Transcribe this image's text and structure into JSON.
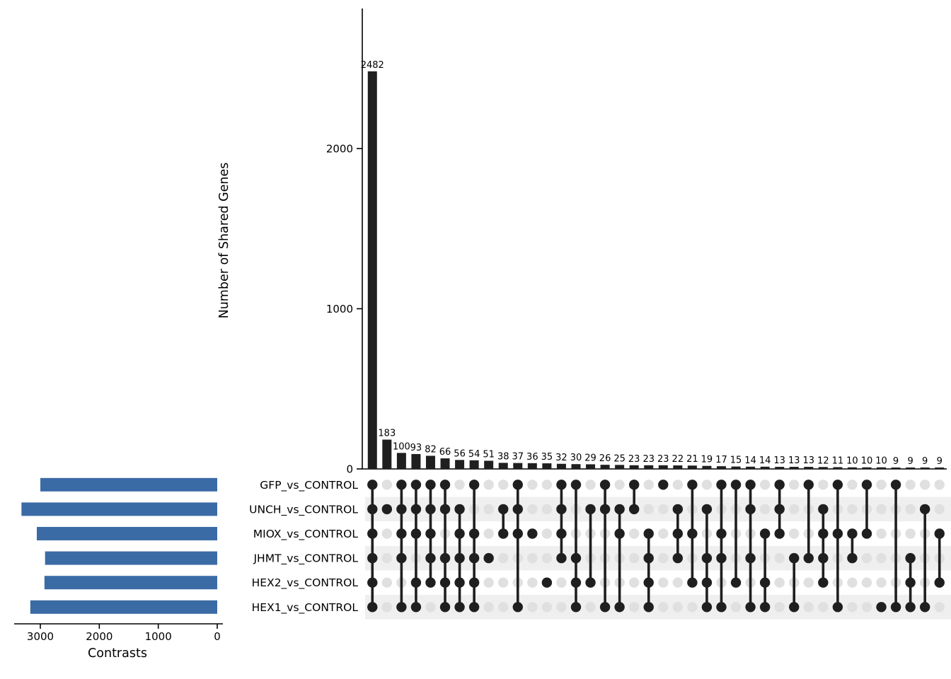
{
  "chart_data": {
    "type": "upset",
    "title": "",
    "intersection_axis": {
      "label": "Number of Shared Genes",
      "ticks": [
        0,
        1000,
        2000
      ],
      "max": 2600
    },
    "set_axis": {
      "label": "Contrasts",
      "ticks": [
        3000,
        2000,
        1000,
        0
      ],
      "max": 3440
    },
    "sets": [
      {
        "name": "GFP_vs_CONTROL",
        "size": 3000
      },
      {
        "name": "UNCH_vs_CONTROL",
        "size": 3320
      },
      {
        "name": "MIOX_vs_CONTROL",
        "size": 3060
      },
      {
        "name": "JHMT_vs_CONTROL",
        "size": 2920
      },
      {
        "name": "HEX2_vs_CONTROL",
        "size": 2930
      },
      {
        "name": "HEX1_vs_CONTROL",
        "size": 3170
      }
    ],
    "intersections": [
      {
        "value": 2482,
        "member": [
          1,
          1,
          1,
          1,
          1,
          1
        ]
      },
      {
        "value": 183,
        "member": [
          0,
          1,
          0,
          0,
          0,
          0
        ]
      },
      {
        "value": 100,
        "member": [
          1,
          1,
          1,
          1,
          0,
          1
        ]
      },
      {
        "value": 93,
        "member": [
          1,
          1,
          1,
          0,
          1,
          1
        ]
      },
      {
        "value": 82,
        "member": [
          1,
          1,
          1,
          1,
          1,
          0
        ]
      },
      {
        "value": 66,
        "member": [
          1,
          1,
          0,
          1,
          1,
          1
        ]
      },
      {
        "value": 56,
        "member": [
          0,
          1,
          1,
          1,
          1,
          1
        ]
      },
      {
        "value": 54,
        "member": [
          1,
          0,
          1,
          1,
          1,
          1
        ]
      },
      {
        "value": 51,
        "member": [
          0,
          0,
          0,
          1,
          0,
          0
        ]
      },
      {
        "value": 38,
        "member": [
          0,
          1,
          1,
          0,
          0,
          0
        ]
      },
      {
        "value": 37,
        "member": [
          1,
          1,
          1,
          0,
          0,
          1
        ]
      },
      {
        "value": 36,
        "member": [
          0,
          0,
          1,
          0,
          0,
          0
        ]
      },
      {
        "value": 35,
        "member": [
          0,
          0,
          0,
          0,
          1,
          0
        ]
      },
      {
        "value": 32,
        "member": [
          1,
          1,
          1,
          1,
          0,
          0
        ]
      },
      {
        "value": 30,
        "member": [
          1,
          0,
          0,
          1,
          1,
          1
        ]
      },
      {
        "value": 29,
        "member": [
          0,
          1,
          0,
          0,
          1,
          0
        ]
      },
      {
        "value": 26,
        "member": [
          1,
          1,
          0,
          0,
          0,
          1
        ]
      },
      {
        "value": 25,
        "member": [
          0,
          1,
          1,
          0,
          0,
          1
        ]
      },
      {
        "value": 23,
        "member": [
          1,
          1,
          0,
          0,
          0,
          0
        ]
      },
      {
        "value": 23,
        "member": [
          0,
          0,
          1,
          1,
          1,
          1
        ]
      },
      {
        "value": 23,
        "member": [
          1,
          0,
          0,
          0,
          0,
          0
        ]
      },
      {
        "value": 22,
        "member": [
          0,
          1,
          1,
          1,
          0,
          0
        ]
      },
      {
        "value": 21,
        "member": [
          1,
          0,
          1,
          0,
          1,
          0
        ]
      },
      {
        "value": 19,
        "member": [
          0,
          1,
          0,
          1,
          1,
          1
        ]
      },
      {
        "value": 17,
        "member": [
          1,
          0,
          1,
          1,
          0,
          1
        ]
      },
      {
        "value": 15,
        "member": [
          1,
          0,
          0,
          0,
          1,
          0
        ]
      },
      {
        "value": 14,
        "member": [
          1,
          1,
          0,
          1,
          0,
          1
        ]
      },
      {
        "value": 14,
        "member": [
          0,
          0,
          1,
          0,
          1,
          1
        ]
      },
      {
        "value": 13,
        "member": [
          1,
          1,
          1,
          0,
          0,
          0
        ]
      },
      {
        "value": 13,
        "member": [
          0,
          0,
          0,
          1,
          0,
          1
        ]
      },
      {
        "value": 13,
        "member": [
          1,
          0,
          0,
          1,
          0,
          0
        ]
      },
      {
        "value": 12,
        "member": [
          0,
          1,
          1,
          1,
          1,
          0
        ]
      },
      {
        "value": 11,
        "member": [
          1,
          0,
          1,
          0,
          0,
          1
        ]
      },
      {
        "value": 10,
        "member": [
          0,
          0,
          1,
          1,
          0,
          0
        ]
      },
      {
        "value": 10,
        "member": [
          1,
          0,
          1,
          0,
          0,
          0
        ]
      },
      {
        "value": 10,
        "member": [
          0,
          0,
          0,
          0,
          0,
          1
        ]
      },
      {
        "value": 9,
        "member": [
          1,
          0,
          0,
          0,
          0,
          1
        ]
      },
      {
        "value": 9,
        "member": [
          0,
          0,
          0,
          1,
          1,
          1
        ]
      },
      {
        "value": 9,
        "member": [
          0,
          1,
          0,
          0,
          0,
          1
        ]
      },
      {
        "value": 9,
        "member": [
          0,
          0,
          1,
          0,
          1,
          0
        ]
      }
    ],
    "colors": {
      "intersection_bar": "#1f1f1f",
      "set_bar": "#3b6ba5",
      "dot_active": "#1f1f1f",
      "dot_inactive": "#e0e0e0",
      "stripe": "#efefef",
      "axis": "#000000",
      "count_label": "#333333"
    }
  }
}
